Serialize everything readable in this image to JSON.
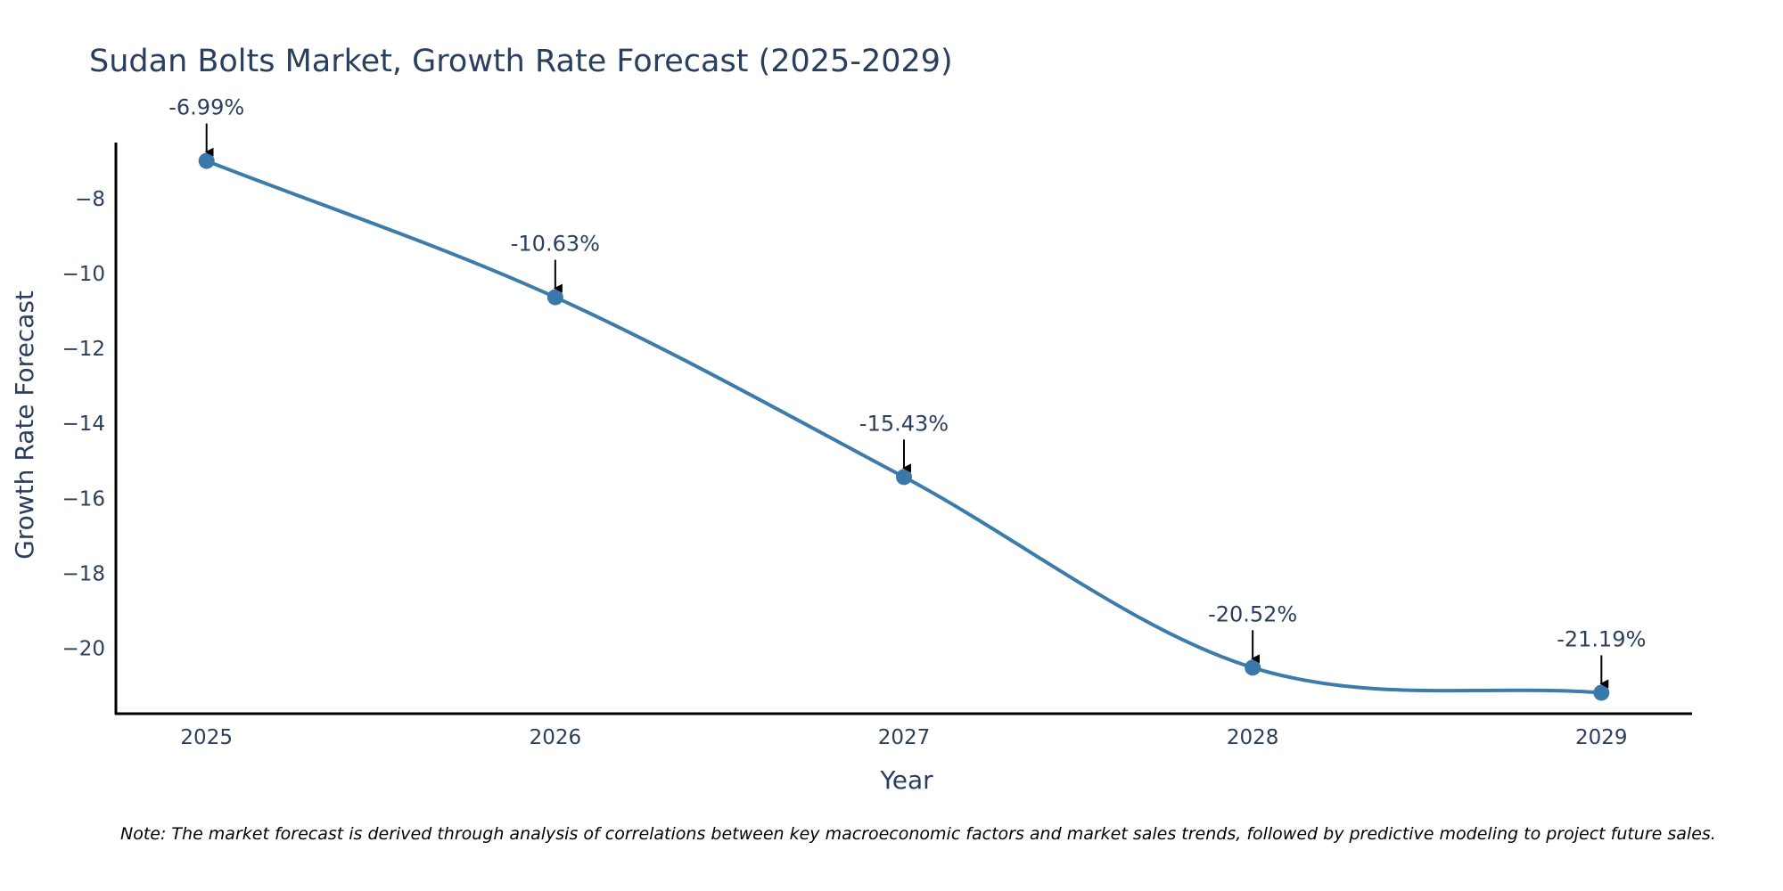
{
  "colors": {
    "line": "#3c7caa",
    "marker": "#3b78aa",
    "text": "#2a3f5f",
    "axis": "#000000",
    "arrow": "#000000",
    "background": "#ffffff"
  },
  "chart_data": {
    "type": "line",
    "title": "Sudan Bolts Market, Growth Rate Forecast (2025-2029)",
    "xlabel": "Year",
    "ylabel": "Growth Rate Forecast",
    "categories": [
      "2025",
      "2026",
      "2027",
      "2028",
      "2029"
    ],
    "series": [
      {
        "name": "Growth Rate Forecast",
        "values": [
          -6.99,
          -10.63,
          -15.43,
          -20.52,
          -21.19
        ]
      }
    ],
    "data_labels": [
      "-6.99%",
      "-10.63%",
      "-15.43%",
      "-20.52%",
      "-21.19%"
    ],
    "y_ticks": [
      -8,
      -10,
      -12,
      -14,
      -16,
      -18,
      -20
    ],
    "y_tick_labels": [
      "−8",
      "−10",
      "−12",
      "−14",
      "−16",
      "−18",
      "−20"
    ],
    "ylim": [
      -21.75,
      -6.5
    ],
    "x_range": [
      -0.26,
      4.26
    ],
    "grid": false,
    "line_shape": "spline",
    "note": "Note: The market forecast is derived through analysis of correlations between key macroeconomic factors and market sales trends, followed by predictive modeling to project future sales."
  }
}
